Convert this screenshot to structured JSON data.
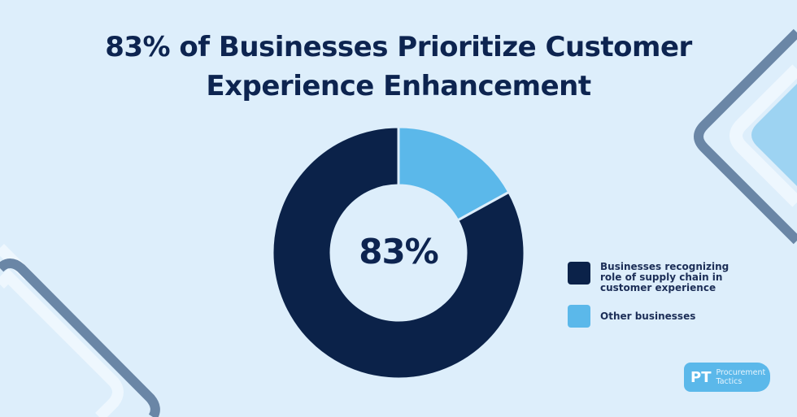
{
  "title": {
    "line1": "83% of Businesses Prioritize Customer",
    "line2": "Experience Enhancement"
  },
  "center_label": "83%",
  "legend": [
    {
      "label": "Businesses recognizing role of supply chain in customer experience",
      "color": "#0b2249"
    },
    {
      "label": "Other businesses",
      "color": "#5bb8ea"
    }
  ],
  "logo": {
    "mark": "PT",
    "line1": "Procurement",
    "line2": "Tactics"
  },
  "colors": {
    "background": "#ddeefb",
    "primary": "#0b2249",
    "secondary": "#5bb8ea",
    "deco_stroke": "#6a86a6"
  },
  "chart_data": {
    "type": "pie",
    "variant": "donut",
    "title": "83% of Businesses Prioritize Customer Experience Enhancement",
    "categories": [
      "Businesses recognizing role of supply chain in customer experience",
      "Other businesses"
    ],
    "values": [
      83,
      17
    ],
    "unit": "%",
    "center_annotation": "83%",
    "colors": [
      "#0b2249",
      "#5bb8ea"
    ],
    "legend_position": "right"
  }
}
